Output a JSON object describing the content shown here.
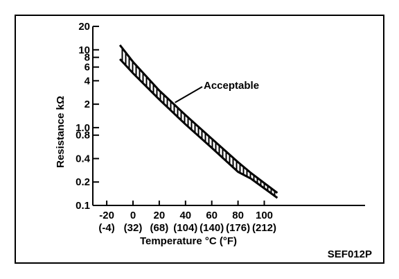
{
  "figure_code": "SEF012P",
  "chart_data": {
    "type": "line",
    "title": "",
    "xlabel": "Temperature °C (°F)",
    "ylabel": "Resistance kΩ",
    "annotation": "Acceptable",
    "y_scale": "log",
    "xlim": [
      -25,
      115
    ],
    "ylim": [
      0.1,
      20
    ],
    "x_ticks": [
      {
        "value": -20,
        "c": "-20",
        "f": "(-4)"
      },
      {
        "value": 0,
        "c": "0",
        "f": "(32)"
      },
      {
        "value": 20,
        "c": "20",
        "f": "(68)"
      },
      {
        "value": 40,
        "c": "40",
        "f": "(104)"
      },
      {
        "value": 60,
        "c": "60",
        "f": "(140)"
      },
      {
        "value": 80,
        "c": "80",
        "f": "(176)"
      },
      {
        "value": 100,
        "c": "100",
        "f": "(212)"
      }
    ],
    "y_ticks": [
      {
        "value": 20,
        "label": "20"
      },
      {
        "value": 10,
        "label": "10"
      },
      {
        "value": 8,
        "label": "8"
      },
      {
        "value": 6,
        "label": "6"
      },
      {
        "value": 4,
        "label": "4"
      },
      {
        "value": 2,
        "label": "2"
      },
      {
        "value": 1.0,
        "label": "1.0"
      },
      {
        "value": 0.8,
        "label": "0.8"
      },
      {
        "value": 0.4,
        "label": "0.4"
      },
      {
        "value": 0.2,
        "label": "0.2"
      },
      {
        "value": 0.1,
        "label": "0.1"
      }
    ],
    "grid": false,
    "band": {
      "upper": [
        [
          -10,
          11.5
        ],
        [
          0,
          7.0
        ],
        [
          20,
          3.0
        ],
        [
          40,
          1.45
        ],
        [
          60,
          0.72
        ],
        [
          80,
          0.36
        ],
        [
          90,
          0.26
        ],
        [
          110,
          0.145
        ]
      ],
      "lower": [
        [
          -10,
          7.6
        ],
        [
          0,
          5.0
        ],
        [
          20,
          2.3
        ],
        [
          40,
          1.1
        ],
        [
          60,
          0.55
        ],
        [
          80,
          0.27
        ],
        [
          90,
          0.22
        ],
        [
          110,
          0.125
        ]
      ]
    }
  }
}
